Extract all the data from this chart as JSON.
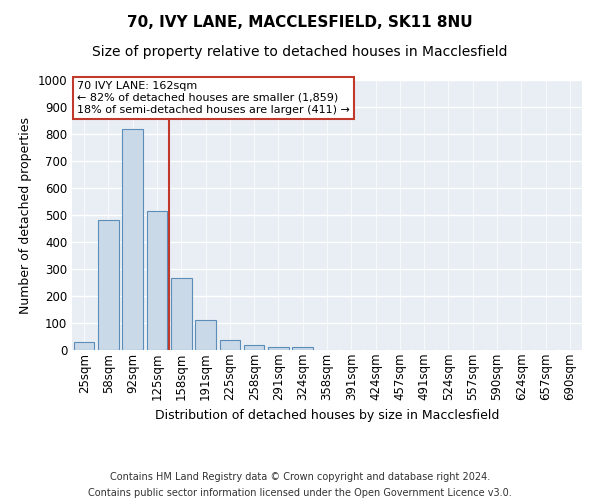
{
  "title1": "70, IVY LANE, MACCLESFIELD, SK11 8NU",
  "title2": "Size of property relative to detached houses in Macclesfield",
  "xlabel": "Distribution of detached houses by size in Macclesfield",
  "ylabel": "Number of detached properties",
  "categories": [
    "25sqm",
    "58sqm",
    "92sqm",
    "125sqm",
    "158sqm",
    "191sqm",
    "225sqm",
    "258sqm",
    "291sqm",
    "324sqm",
    "358sqm",
    "391sqm",
    "424sqm",
    "457sqm",
    "491sqm",
    "524sqm",
    "557sqm",
    "590sqm",
    "624sqm",
    "657sqm",
    "690sqm"
  ],
  "values": [
    30,
    480,
    820,
    515,
    265,
    110,
    38,
    20,
    12,
    12,
    0,
    0,
    0,
    0,
    0,
    0,
    0,
    0,
    0,
    0,
    0
  ],
  "bar_color": "#c9d9e8",
  "bar_edge_color": "#5b8db8",
  "vline_color": "#c0392b",
  "annotation_title": "70 IVY LANE: 162sqm",
  "annotation_line1": "← 82% of detached houses are smaller (1,859)",
  "annotation_line2": "18% of semi-detached houses are larger (411) →",
  "annotation_box_color": "#c0392b",
  "ylim": [
    0,
    1000
  ],
  "yticks": [
    0,
    100,
    200,
    300,
    400,
    500,
    600,
    700,
    800,
    900,
    1000
  ],
  "bg_color": "#e8eef4",
  "grid_color": "#ffffff",
  "footer1": "Contains HM Land Registry data © Crown copyright and database right 2024.",
  "footer2": "Contains public sector information licensed under the Open Government Licence v3.0.",
  "title_fontsize": 11,
  "subtitle_fontsize": 10,
  "axis_label_fontsize": 9,
  "tick_fontsize": 8.5,
  "footer_fontsize": 7
}
